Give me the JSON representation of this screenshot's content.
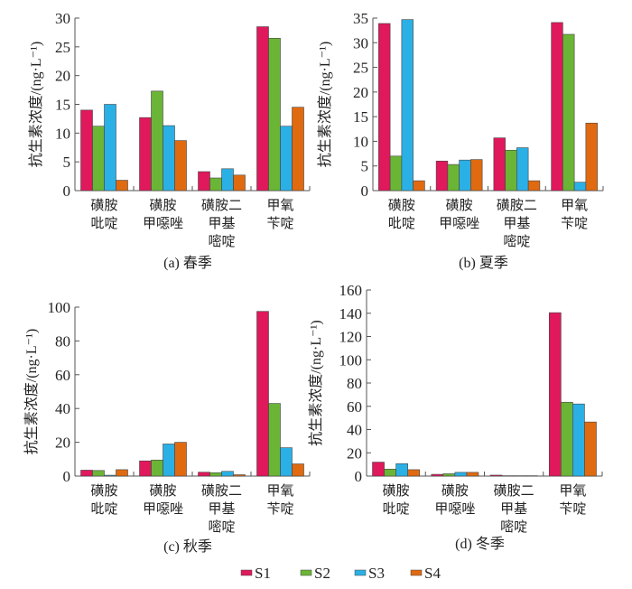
{
  "figure": {
    "legend": {
      "placement": "bottom-center",
      "items": [
        {
          "name": "S1",
          "color": "#e0185c"
        },
        {
          "name": "S2",
          "color": "#6bb536"
        },
        {
          "name": "S3",
          "color": "#2bb0e6"
        },
        {
          "name": "S4",
          "color": "#e06a10"
        }
      ]
    }
  },
  "chart_data": [
    {
      "type": "bar",
      "title": "(a) 春季",
      "xlabel": "",
      "ylabel": "抗生素浓度/(ng·L⁻¹)",
      "ylim": [
        0,
        30
      ],
      "yticks": [
        0,
        5,
        10,
        15,
        20,
        25,
        30
      ],
      "categories": [
        [
          "磺胺",
          "吡啶"
        ],
        [
          "磺胺",
          "甲噁唑"
        ],
        [
          "磺胺二",
          "甲基",
          "嘧啶"
        ],
        [
          "甲氧",
          "苄啶"
        ]
      ],
      "series": [
        {
          "name": "S1",
          "values": [
            14.0,
            12.7,
            3.3,
            28.5
          ]
        },
        {
          "name": "S2",
          "values": [
            11.2,
            17.3,
            2.2,
            26.5
          ]
        },
        {
          "name": "S3",
          "values": [
            15.0,
            11.3,
            3.8,
            11.2
          ]
        },
        {
          "name": "S4",
          "values": [
            1.8,
            8.7,
            2.7,
            14.5
          ]
        }
      ],
      "grid": false
    },
    {
      "type": "bar",
      "title": "(b) 夏季",
      "xlabel": "",
      "ylabel": "抗生素浓度/(ng·L⁻¹)",
      "ylim": [
        0,
        35
      ],
      "yticks": [
        0,
        5,
        10,
        15,
        20,
        25,
        30,
        35
      ],
      "categories": [
        [
          "磺胺",
          "吡啶"
        ],
        [
          "磺胺",
          "甲噁唑"
        ],
        [
          "磺胺二",
          "甲基",
          "嘧啶"
        ],
        [
          "甲氧",
          "苄啶"
        ]
      ],
      "series": [
        {
          "name": "S1",
          "values": [
            33.9,
            6.0,
            10.7,
            34.1
          ]
        },
        {
          "name": "S2",
          "values": [
            7.0,
            5.3,
            8.2,
            31.7
          ]
        },
        {
          "name": "S3",
          "values": [
            34.7,
            6.2,
            8.7,
            1.7
          ]
        },
        {
          "name": "S4",
          "values": [
            2.0,
            6.3,
            2.0,
            13.7
          ]
        }
      ],
      "grid": false
    },
    {
      "type": "bar",
      "title": "(c) 秋季",
      "xlabel": "",
      "ylabel": "抗生素浓度/(ng·L⁻¹)",
      "ylim": [
        0,
        100
      ],
      "yticks": [
        0,
        20,
        40,
        60,
        80,
        100
      ],
      "categories": [
        [
          "磺胺",
          "吡啶"
        ],
        [
          "磺胺",
          "甲噁唑"
        ],
        [
          "磺胺二",
          "甲基",
          "嘧啶"
        ],
        [
          "甲氧",
          "苄啶"
        ]
      ],
      "series": [
        {
          "name": "S1",
          "values": [
            3.5,
            9.0,
            2.3,
            97.5
          ]
        },
        {
          "name": "S2",
          "values": [
            3.3,
            9.5,
            2.0,
            43.0
          ]
        },
        {
          "name": "S3",
          "values": [
            0.5,
            19.0,
            2.8,
            16.8
          ]
        },
        {
          "name": "S4",
          "values": [
            3.8,
            20.0,
            0.8,
            7.2
          ]
        }
      ],
      "grid": false
    },
    {
      "type": "bar",
      "title": "(d) 冬季",
      "xlabel": "",
      "ylabel": "抗生素浓度/(ng·L⁻¹)",
      "ylim": [
        0,
        160
      ],
      "yticks": [
        0,
        20,
        40,
        60,
        80,
        100,
        120,
        140,
        160
      ],
      "categories": [
        [
          "磺胺",
          "吡啶"
        ],
        [
          "磺胺",
          "甲噁唑"
        ],
        [
          "磺胺二",
          "甲基",
          "嘧啶"
        ],
        [
          "甲氧",
          "苄啶"
        ]
      ],
      "series": [
        {
          "name": "S1",
          "values": [
            12.0,
            1.5,
            0.8,
            140.5
          ]
        },
        {
          "name": "S2",
          "values": [
            6.0,
            2.0,
            0.3,
            63.5
          ]
        },
        {
          "name": "S3",
          "values": [
            10.7,
            3.2,
            0.3,
            62.0
          ]
        },
        {
          "name": "S4",
          "values": [
            5.5,
            3.2,
            0.3,
            46.5
          ]
        }
      ],
      "grid": false
    }
  ]
}
